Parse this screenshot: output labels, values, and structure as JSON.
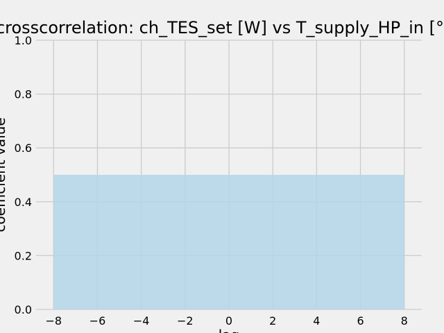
{
  "chart_data": {
    "type": "area",
    "title": "crosscorrelation: ch_TES_set [W] vs T_supply_HP_in [°C]",
    "xlabel": "lag",
    "ylabel": "coefficient value",
    "xlim": [
      -8.8,
      8.8
    ],
    "ylim": [
      0,
      1
    ],
    "xticks": [
      -8,
      -6,
      -4,
      -2,
      0,
      2,
      4,
      6,
      8
    ],
    "xtick_labels": [
      "−8",
      "−6",
      "−4",
      "−2",
      "0",
      "2",
      "4",
      "6",
      "8"
    ],
    "yticks": [
      0,
      0.2,
      0.4,
      0.6,
      0.8,
      1.0
    ],
    "ytick_labels": [
      "0.0",
      "0.2",
      "0.4",
      "0.6",
      "0.8",
      "1.0"
    ],
    "grid": true,
    "band": {
      "x_start": -8,
      "x_end": 8,
      "y_from": 0,
      "y_to": 0.5,
      "color": "#b3d6e9"
    },
    "colors": {
      "background": "#f0f0f0",
      "grid": "#cbcbcb",
      "fill": "#b3d6e9"
    }
  }
}
